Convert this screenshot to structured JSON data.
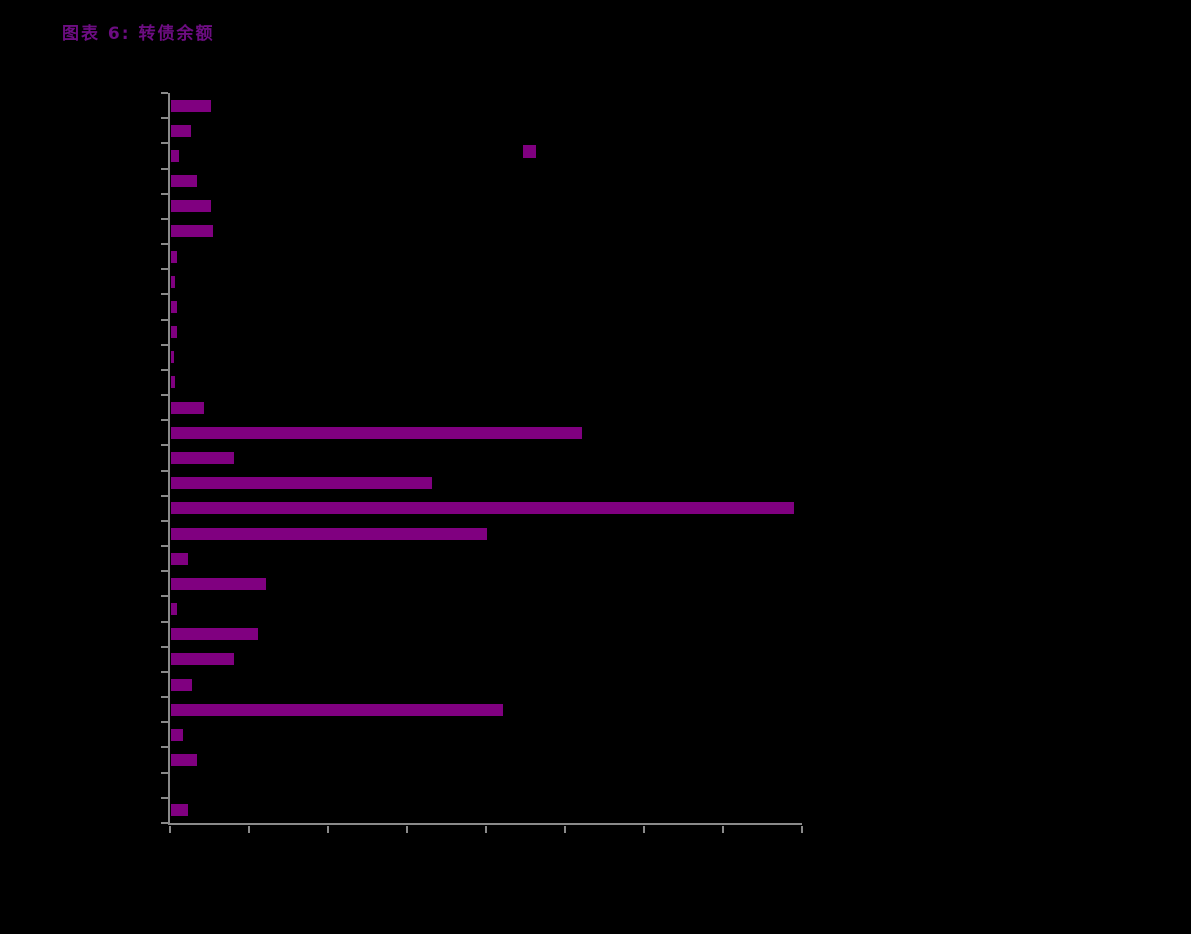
{
  "header": {
    "title": "图表 6: 转债余额"
  },
  "chart_data": {
    "type": "bar",
    "orientation": "horizontal",
    "title": "图表 6: 转债余额",
    "values": [
      5.1,
      2.5,
      1.0,
      3.3,
      5.1,
      5.3,
      0.8,
      0.5,
      0.8,
      0.8,
      0.4,
      0.5,
      4.2,
      52.0,
      8.0,
      33.0,
      78.8,
      40.0,
      2.2,
      12.0,
      0.8,
      11.0,
      8.0,
      2.6,
      42.0,
      1.5,
      3.3,
      0.0,
      2.1
    ],
    "category_count": 29,
    "category_labels_visible": false,
    "axis_tick_labels_visible": false,
    "xlim": [
      0,
      80
    ],
    "x_tick_step": 10,
    "x_tick_count": 9,
    "y_tick_count": 30,
    "grid": false,
    "legend": {
      "position": "top-center",
      "marker": "square",
      "marker_color": "#800080",
      "label_visible": false,
      "label": ""
    },
    "colors": {
      "bar": "#800080",
      "axis": "#8a8a8a",
      "background": "#000000",
      "title": "#6d0d82"
    }
  }
}
